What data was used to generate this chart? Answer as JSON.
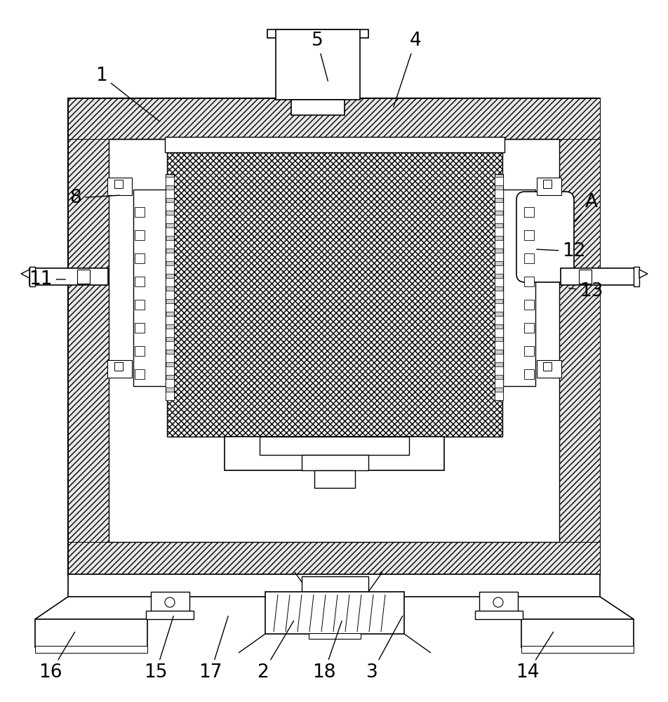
{
  "bg_color": "#ffffff",
  "line_color": "#000000",
  "fig_width": 9.53,
  "fig_height": 10.0,
  "labels": {
    "1": [
      145,
      108,
      230,
      175
    ],
    "4": [
      592,
      58,
      560,
      155
    ],
    "5": [
      452,
      58,
      468,
      118
    ],
    "8": [
      108,
      282,
      173,
      278
    ],
    "11": [
      58,
      398,
      96,
      398
    ],
    "12": [
      818,
      358,
      762,
      355
    ],
    "13": [
      843,
      415,
      808,
      410
    ],
    "A": [
      843,
      288,
      818,
      318
    ],
    "16": [
      72,
      958,
      108,
      898
    ],
    "15": [
      222,
      958,
      248,
      875
    ],
    "17": [
      300,
      958,
      326,
      875
    ],
    "2": [
      375,
      958,
      420,
      882
    ],
    "18": [
      462,
      958,
      488,
      882
    ],
    "3": [
      530,
      958,
      575,
      875
    ],
    "14": [
      752,
      958,
      790,
      898
    ]
  }
}
